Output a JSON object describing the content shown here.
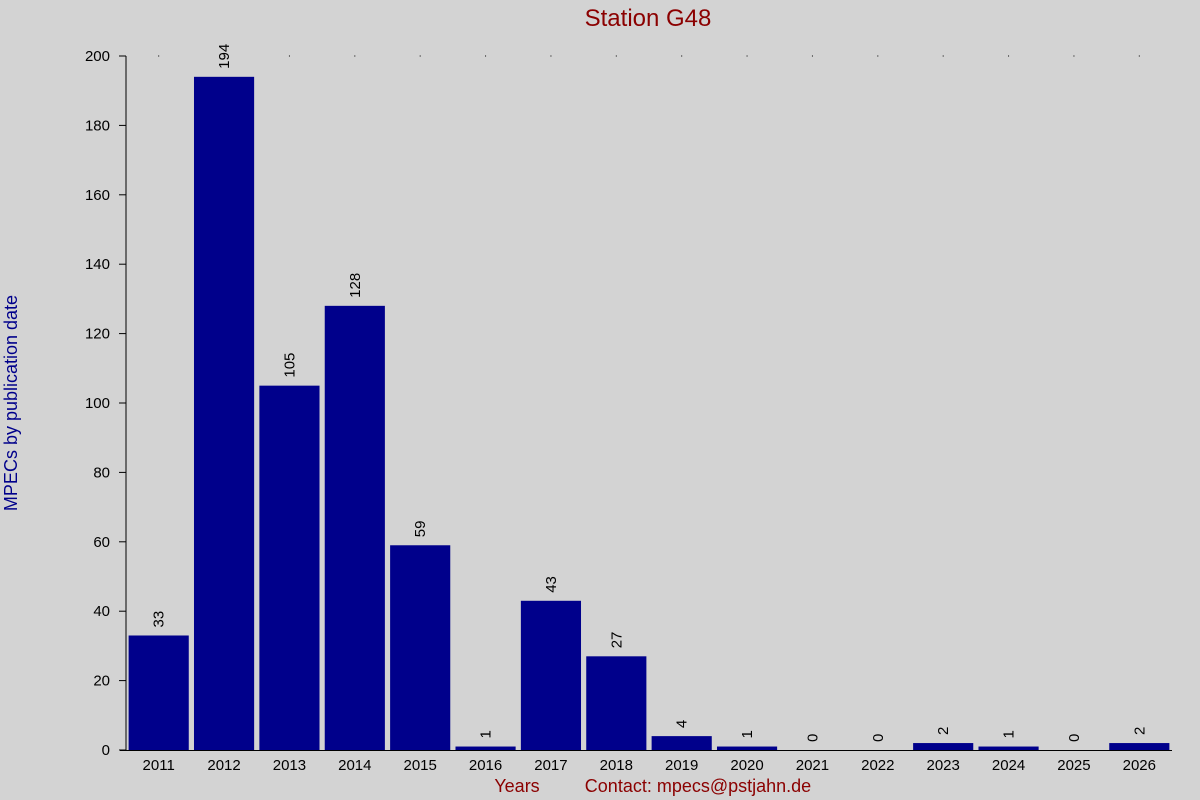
{
  "chart_data": {
    "type": "bar",
    "title": "Station G48",
    "ylabel": "MPECs by publication date",
    "xlabel": "Years",
    "contact": "Contact: mpecs@pstjahn.de",
    "categories": [
      "2011",
      "2012",
      "2013",
      "2014",
      "2015",
      "2016",
      "2017",
      "2018",
      "2019",
      "2020",
      "2021",
      "2022",
      "2023",
      "2024",
      "2025",
      "2026"
    ],
    "values": [
      33,
      194,
      105,
      128,
      59,
      1,
      43,
      27,
      4,
      1,
      0,
      0,
      2,
      1,
      0,
      2
    ],
    "ylim": [
      0,
      200
    ],
    "yticks": [
      0,
      20,
      40,
      60,
      80,
      100,
      120,
      140,
      160,
      180,
      200
    ],
    "grid": "dotted top line",
    "legend": "none",
    "colors": {
      "bar": "#00008b",
      "title": "#8b0000",
      "ylabel": "#00008b",
      "footer": "#8b0000",
      "background": "#d3d3d3"
    }
  }
}
